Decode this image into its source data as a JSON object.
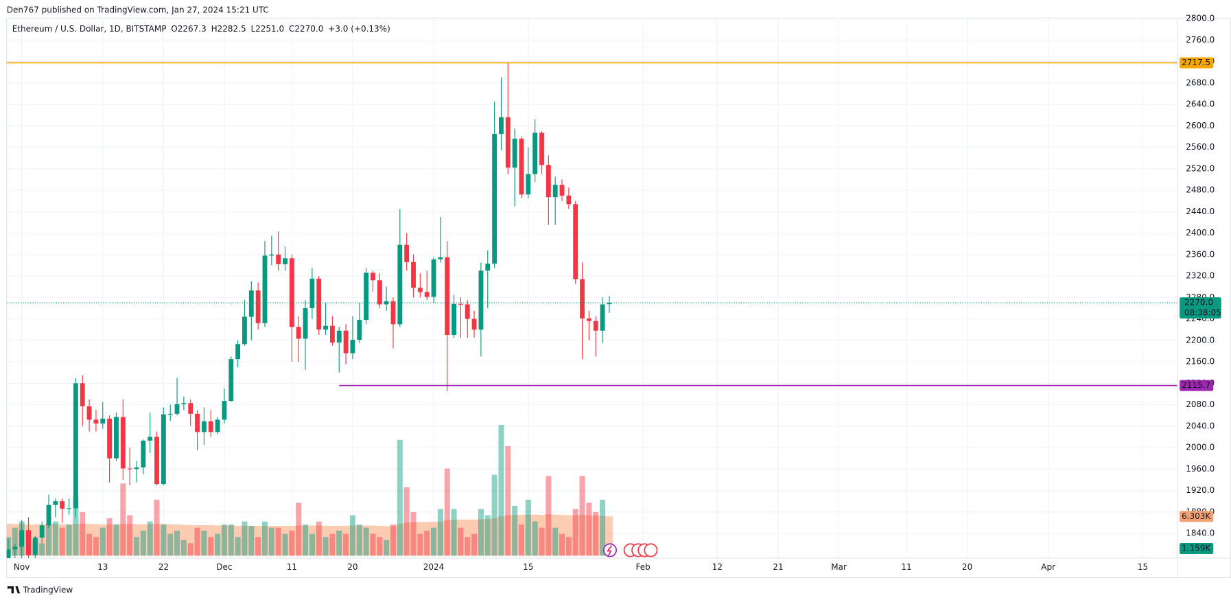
{
  "header": {
    "publisher": "Den767 published on TradingView.com, Jan 27, 2024 15:21 UTC"
  },
  "footer": {
    "brand": "TradingView"
  },
  "chart_data": {
    "type": "candlestick",
    "legend": {
      "symbol": "Ethereum / U.S. Dollar, 1D, BITSTAMP",
      "ohlc": [
        "O2267.3",
        "H2282.5",
        "L2251.0",
        "C2270.0"
      ],
      "change": "+3.0 (+0.13%)"
    },
    "up_color": "#089981",
    "down_color": "#f23645",
    "grid": true,
    "xlim": [
      -0.23,
      173.1
    ],
    "ylim": [
      1794,
      2801
    ],
    "volume_lim": [
      0,
      60000
    ],
    "xticks": [
      {
        "value": 2,
        "label": "Nov"
      },
      {
        "value": 14,
        "label": "13"
      },
      {
        "value": 23,
        "label": "22"
      },
      {
        "value": 32,
        "label": "Dec"
      },
      {
        "value": 42,
        "label": "11"
      },
      {
        "value": 51,
        "label": "20"
      },
      {
        "value": 63,
        "label": "2024"
      },
      {
        "value": 77,
        "label": "15"
      },
      {
        "value": 94,
        "label": "Feb"
      },
      {
        "value": 105,
        "label": "12"
      },
      {
        "value": 114,
        "label": "21"
      },
      {
        "value": 123,
        "label": "Mar"
      },
      {
        "value": 133,
        "label": "11"
      },
      {
        "value": 142,
        "label": "20"
      },
      {
        "value": 154,
        "label": "Apr"
      },
      {
        "value": 168,
        "label": "15"
      }
    ],
    "yticks": [
      {
        "value": 1840,
        "label": "1840.0"
      },
      {
        "value": 1880,
        "label": "1880.0"
      },
      {
        "value": 1920,
        "label": "1920.0"
      },
      {
        "value": 1960,
        "label": "1960.0"
      },
      {
        "value": 2000,
        "label": "2000.0"
      },
      {
        "value": 2040,
        "label": "2040.0"
      },
      {
        "value": 2080,
        "label": "2080.0"
      },
      {
        "value": 2120,
        "label": "2120.0"
      },
      {
        "value": 2160,
        "label": "2160.0"
      },
      {
        "value": 2200,
        "label": "2200.0"
      },
      {
        "value": 2240,
        "label": "2240.0"
      },
      {
        "value": 2280,
        "label": "2280.0"
      },
      {
        "value": 2320,
        "label": "2320.0"
      },
      {
        "value": 2360,
        "label": "2360.0"
      },
      {
        "value": 2400,
        "label": "2400.0"
      },
      {
        "value": 2440,
        "label": "2440.0"
      },
      {
        "value": 2480,
        "label": "2480.0"
      },
      {
        "value": 2520,
        "label": "2520.0"
      },
      {
        "value": 2560,
        "label": "2560.0"
      },
      {
        "value": 2600,
        "label": "2600.0"
      },
      {
        "value": 2640,
        "label": "2640.0"
      },
      {
        "value": 2680,
        "label": "2680.0"
      },
      {
        "value": 2720,
        "label": "2720.0"
      },
      {
        "value": 2760,
        "label": "2760.0"
      },
      {
        "value": 2800,
        "label": "2800.0"
      }
    ],
    "open": [
      1790,
      1810,
      1815,
      1846,
      1800,
      1832,
      1855,
      1893,
      1900,
      1886,
      1887,
      2120,
      2077,
      2052,
      2045,
      2054,
      1980,
      2057,
      1961,
      1960,
      1963,
      2013,
      2020,
      1932,
      2062,
      2063,
      2081,
      2083,
      2063,
      2029,
      2049,
      2029,
      2052,
      2087,
      2165,
      2193,
      2244,
      2293,
      2232,
      2358,
      2360,
      2342,
      2353,
      2225,
      2203,
      2260,
      2315,
      2220,
      2227,
      2196,
      2218,
      2176,
      2201,
      2238,
      2326,
      2312,
      2267,
      2273,
      2230,
      2378,
      2346,
      2298,
      2290,
      2281,
      2351,
      2355,
      2210,
      2268,
      2267,
      2240,
      2220,
      2330,
      2343,
      2585,
      2616,
      2522,
      2576,
      2472,
      2510,
      2587,
      2527,
      2467,
      2490,
      2470,
      2454,
      2314,
      2241,
      2236,
      2218,
      2267.3
    ],
    "high": [
      1830,
      1820,
      1865,
      1870,
      1835,
      1862,
      1912,
      1905,
      1905,
      1905,
      2130,
      2135,
      2090,
      2070,
      2085,
      2060,
      2065,
      2090,
      2000,
      1975,
      2015,
      2065,
      2030,
      2075,
      2080,
      2130,
      2095,
      2090,
      2070,
      2075,
      2070,
      2057,
      2110,
      2170,
      2200,
      2275,
      2310,
      2308,
      2385,
      2395,
      2403,
      2375,
      2360,
      2245,
      2275,
      2335,
      2320,
      2270,
      2245,
      2225,
      2230,
      2245,
      2270,
      2335,
      2330,
      2325,
      2300,
      2280,
      2445,
      2400,
      2360,
      2325,
      2330,
      2355,
      2430,
      2385,
      2285,
      2280,
      2275,
      2255,
      2345,
      2368,
      2645,
      2690,
      2717,
      2595,
      2580,
      2560,
      2612,
      2590,
      2545,
      2505,
      2500,
      2485,
      2460,
      2345,
      2255,
      2245,
      2280,
      2282.5
    ],
    "low": [
      1775,
      1770,
      1790,
      1780,
      1785,
      1822,
      1850,
      1870,
      1860,
      1875,
      1870,
      2040,
      2030,
      2030,
      2035,
      1935,
      1975,
      1940,
      1930,
      1935,
      1950,
      1990,
      1930,
      1930,
      2050,
      2060,
      2070,
      2040,
      1995,
      2005,
      2020,
      2025,
      2045,
      2085,
      2150,
      2190,
      2200,
      2220,
      2225,
      2340,
      2330,
      2330,
      2160,
      2160,
      2145,
      2240,
      2210,
      2210,
      2190,
      2140,
      2155,
      2165,
      2195,
      2230,
      2290,
      2260,
      2255,
      2185,
      2225,
      2330,
      2280,
      2280,
      2275,
      2270,
      2345,
      2105,
      2205,
      2205,
      2205,
      2205,
      2170,
      2260,
      2335,
      2555,
      2510,
      2450,
      2465,
      2465,
      2495,
      2510,
      2415,
      2415,
      2460,
      2445,
      2305,
      2165,
      2200,
      2170,
      2195,
      2251.0
    ],
    "close": [
      1810,
      1815,
      1846,
      1800,
      1832,
      1855,
      1893,
      1900,
      1886,
      1887,
      2120,
      2077,
      2052,
      2045,
      2054,
      1980,
      2057,
      1961,
      1960,
      1963,
      2013,
      2020,
      1932,
      2062,
      2063,
      2081,
      2083,
      2063,
      2029,
      2049,
      2029,
      2052,
      2087,
      2165,
      2193,
      2244,
      2293,
      2232,
      2358,
      2360,
      2342,
      2353,
      2225,
      2203,
      2260,
      2315,
      2220,
      2227,
      2196,
      2218,
      2176,
      2201,
      2238,
      2326,
      2312,
      2267,
      2273,
      2230,
      2378,
      2346,
      2298,
      2290,
      2281,
      2351,
      2355,
      2210,
      2268,
      2267,
      2240,
      2220,
      2330,
      2343,
      2585,
      2616,
      2522,
      2576,
      2472,
      2510,
      2587,
      2527,
      2467,
      2490,
      2470,
      2454,
      2314,
      2241,
      2236,
      2218,
      2267,
      2270.0
    ],
    "volume": [
      3000,
      4500,
      5500,
      4000,
      2500,
      2000,
      5200,
      5500,
      4500,
      5000,
      9500,
      7000,
      3500,
      3000,
      4500,
      6000,
      5000,
      11600,
      6500,
      3000,
      4000,
      5500,
      9000,
      5000,
      3500,
      4000,
      2500,
      2000,
      4500,
      4000,
      3000,
      3500,
      5000,
      5000,
      3000,
      5500,
      4800,
      3000,
      5500,
      4500,
      4500,
      3500,
      4000,
      8500,
      5000,
      3500,
      5500,
      3000,
      3500,
      4000,
      3500,
      6500,
      5000,
      4500,
      3500,
      3000,
      2500,
      5000,
      18600,
      11000,
      7000,
      3500,
      4000,
      4500,
      7500,
      14000,
      7500,
      4500,
      3000,
      3500,
      7500,
      6500,
      13000,
      21000,
      17600,
      8000,
      5000,
      9000,
      5500,
      4500,
      12800,
      4500,
      3500,
      3000,
      7500,
      12800,
      8500,
      7000,
      9000,
      1159
    ],
    "volume_ma": [
      5100,
      5100,
      5050,
      5000,
      5000,
      5000,
      5050,
      5100,
      5050,
      5000,
      5100,
      5150,
      5100,
      5050,
      5000,
      5000,
      5000,
      5100,
      5100,
      5050,
      5050,
      5050,
      5100,
      5100,
      5050,
      5000,
      4950,
      4900,
      4900,
      4900,
      4900,
      4850,
      4850,
      4850,
      4800,
      4800,
      4800,
      4800,
      4800,
      4800,
      4800,
      4800,
      4800,
      4850,
      4850,
      4850,
      4850,
      4800,
      4800,
      4800,
      4800,
      4850,
      4850,
      4850,
      4850,
      4800,
      4750,
      4800,
      5100,
      5300,
      5400,
      5400,
      5400,
      5450,
      5500,
      5700,
      5800,
      5800,
      5800,
      5800,
      5850,
      5900,
      6050,
      6300,
      6500,
      6550,
      6550,
      6600,
      6600,
      6550,
      6650,
      6600,
      6550,
      6500,
      6500,
      6550,
      6500,
      6450,
      6400,
      6303
    ],
    "volume_ma_color": "#f7a172",
    "volume_ma_label": "6.303K",
    "last_volume_label": "1.159K",
    "levels": [
      {
        "value": 2717.5,
        "label": "2717.5",
        "color": "#f7a600"
      },
      {
        "value": 2115.7,
        "label": "2115.7",
        "color": "#9c27b0",
        "start": 49
      }
    ],
    "last_price": {
      "value": 2270.0,
      "label": "2270.0",
      "countdown": "08:38:05"
    }
  }
}
